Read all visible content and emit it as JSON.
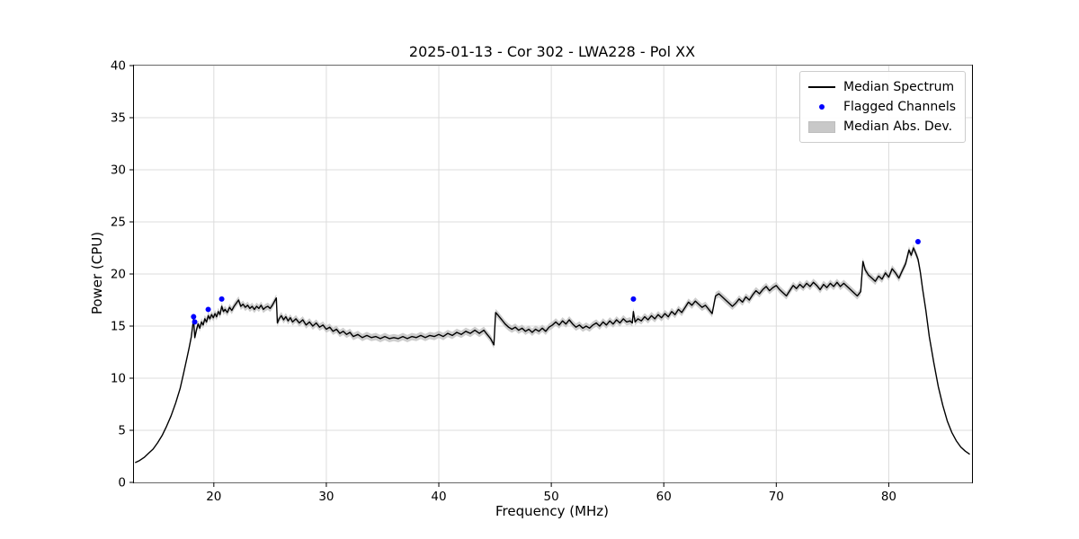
{
  "chart_data": {
    "type": "line",
    "title": "2025-01-13 - Cor 302 - LWA228 - Pol XX",
    "xlabel": "Frequency (MHz)",
    "ylabel": "Power (CPU)",
    "xlim": [
      12.9,
      87.4
    ],
    "ylim": [
      0,
      40
    ],
    "xticks": [
      20,
      30,
      40,
      50,
      60,
      70,
      80
    ],
    "yticks": [
      0,
      5,
      10,
      15,
      20,
      25,
      30,
      35,
      40
    ],
    "grid": true,
    "legend_position": "upper right",
    "legend": {
      "line_label": "Median Spectrum",
      "flagged_label": "Flagged Channels",
      "band_label": "Median Abs. Dev."
    },
    "colors": {
      "line": "#000000",
      "flagged": "#0000ff",
      "band": "#c4c4c4",
      "grid": "#dcdcdc"
    },
    "mad": {
      "halfwidth": 0.35,
      "range": [
        18.0,
        83.0
      ]
    },
    "flagged": [
      [
        18.2,
        15.9
      ],
      [
        18.3,
        15.4
      ],
      [
        19.5,
        16.6
      ],
      [
        20.7,
        17.6
      ],
      [
        57.3,
        17.6
      ],
      [
        82.6,
        23.1
      ]
    ],
    "series_name": "Median Spectrum",
    "series": [
      [
        13.0,
        1.9
      ],
      [
        13.4,
        2.1
      ],
      [
        13.8,
        2.4
      ],
      [
        14.2,
        2.8
      ],
      [
        14.6,
        3.2
      ],
      [
        15.0,
        3.8
      ],
      [
        15.4,
        4.5
      ],
      [
        15.8,
        5.4
      ],
      [
        16.2,
        6.4
      ],
      [
        16.6,
        7.6
      ],
      [
        17.0,
        9.0
      ],
      [
        17.3,
        10.4
      ],
      [
        17.6,
        11.9
      ],
      [
        17.8,
        12.9
      ],
      [
        18.0,
        14.0
      ],
      [
        18.1,
        14.9
      ],
      [
        18.2,
        15.7
      ],
      [
        18.3,
        13.9
      ],
      [
        18.45,
        14.6
      ],
      [
        18.6,
        15.2
      ],
      [
        18.75,
        14.8
      ],
      [
        18.9,
        15.4
      ],
      [
        19.05,
        15.1
      ],
      [
        19.2,
        15.7
      ],
      [
        19.35,
        15.4
      ],
      [
        19.5,
        16.0
      ],
      [
        19.65,
        15.7
      ],
      [
        19.8,
        16.1
      ],
      [
        19.95,
        15.8
      ],
      [
        20.1,
        16.2
      ],
      [
        20.25,
        15.9
      ],
      [
        20.4,
        16.4
      ],
      [
        20.55,
        16.1
      ],
      [
        20.7,
        16.9
      ],
      [
        20.85,
        16.4
      ],
      [
        21.0,
        16.6
      ],
      [
        21.2,
        16.3
      ],
      [
        21.4,
        16.8
      ],
      [
        21.6,
        16.5
      ],
      [
        21.8,
        16.9
      ],
      [
        22.0,
        17.2
      ],
      [
        22.2,
        17.5
      ],
      [
        22.4,
        16.9
      ],
      [
        22.6,
        17.1
      ],
      [
        22.8,
        16.8
      ],
      [
        23.0,
        17.0
      ],
      [
        23.2,
        16.7
      ],
      [
        23.4,
        16.9
      ],
      [
        23.6,
        16.6
      ],
      [
        23.8,
        16.9
      ],
      [
        24.0,
        16.7
      ],
      [
        24.2,
        17.0
      ],
      [
        24.4,
        16.6
      ],
      [
        24.6,
        16.8
      ],
      [
        24.8,
        16.9
      ],
      [
        25.0,
        16.7
      ],
      [
        25.2,
        17.0
      ],
      [
        25.4,
        17.4
      ],
      [
        25.55,
        17.7
      ],
      [
        25.65,
        15.3
      ],
      [
        25.8,
        15.7
      ],
      [
        26.0,
        16.0
      ],
      [
        26.2,
        15.6
      ],
      [
        26.4,
        15.9
      ],
      [
        26.6,
        15.5
      ],
      [
        26.8,
        15.8
      ],
      [
        27.0,
        15.4
      ],
      [
        27.3,
        15.7
      ],
      [
        27.6,
        15.3
      ],
      [
        27.9,
        15.6
      ],
      [
        28.2,
        15.1
      ],
      [
        28.5,
        15.4
      ],
      [
        28.8,
        15.0
      ],
      [
        29.1,
        15.3
      ],
      [
        29.4,
        14.9
      ],
      [
        29.7,
        15.1
      ],
      [
        30.0,
        14.7
      ],
      [
        30.3,
        14.9
      ],
      [
        30.6,
        14.5
      ],
      [
        30.9,
        14.7
      ],
      [
        31.2,
        14.3
      ],
      [
        31.5,
        14.5
      ],
      [
        31.8,
        14.2
      ],
      [
        32.1,
        14.4
      ],
      [
        32.4,
        14.0
      ],
      [
        32.8,
        14.2
      ],
      [
        33.2,
        13.9
      ],
      [
        33.6,
        14.1
      ],
      [
        34.0,
        13.9
      ],
      [
        34.4,
        14.0
      ],
      [
        34.8,
        13.8
      ],
      [
        35.2,
        14.0
      ],
      [
        35.6,
        13.8
      ],
      [
        36.0,
        13.9
      ],
      [
        36.4,
        13.8
      ],
      [
        36.8,
        14.0
      ],
      [
        37.2,
        13.8
      ],
      [
        37.6,
        14.0
      ],
      [
        38.0,
        13.9
      ],
      [
        38.4,
        14.1
      ],
      [
        38.8,
        13.9
      ],
      [
        39.2,
        14.1
      ],
      [
        39.6,
        14.0
      ],
      [
        40.0,
        14.2
      ],
      [
        40.4,
        14.0
      ],
      [
        40.8,
        14.3
      ],
      [
        41.2,
        14.1
      ],
      [
        41.6,
        14.4
      ],
      [
        42.0,
        14.2
      ],
      [
        42.4,
        14.5
      ],
      [
        42.8,
        14.3
      ],
      [
        43.2,
        14.6
      ],
      [
        43.6,
        14.3
      ],
      [
        44.0,
        14.6
      ],
      [
        44.3,
        14.2
      ],
      [
        44.6,
        13.8
      ],
      [
        44.9,
        13.2
      ],
      [
        45.05,
        16.3
      ],
      [
        45.3,
        16.0
      ],
      [
        45.6,
        15.6
      ],
      [
        45.9,
        15.2
      ],
      [
        46.2,
        14.9
      ],
      [
        46.5,
        14.7
      ],
      [
        46.8,
        14.9
      ],
      [
        47.1,
        14.6
      ],
      [
        47.4,
        14.8
      ],
      [
        47.7,
        14.5
      ],
      [
        48.0,
        14.7
      ],
      [
        48.3,
        14.4
      ],
      [
        48.6,
        14.7
      ],
      [
        48.9,
        14.5
      ],
      [
        49.2,
        14.8
      ],
      [
        49.5,
        14.5
      ],
      [
        49.8,
        14.9
      ],
      [
        50.1,
        15.1
      ],
      [
        50.4,
        15.4
      ],
      [
        50.7,
        15.1
      ],
      [
        51.0,
        15.5
      ],
      [
        51.3,
        15.2
      ],
      [
        51.6,
        15.6
      ],
      [
        51.9,
        15.2
      ],
      [
        52.2,
        14.9
      ],
      [
        52.5,
        15.1
      ],
      [
        52.8,
        14.8
      ],
      [
        53.1,
        15.0
      ],
      [
        53.4,
        14.8
      ],
      [
        53.7,
        15.1
      ],
      [
        54.0,
        15.3
      ],
      [
        54.3,
        15.0
      ],
      [
        54.6,
        15.4
      ],
      [
        54.9,
        15.1
      ],
      [
        55.2,
        15.5
      ],
      [
        55.5,
        15.2
      ],
      [
        55.8,
        15.6
      ],
      [
        56.1,
        15.3
      ],
      [
        56.4,
        15.7
      ],
      [
        56.7,
        15.4
      ],
      [
        57.0,
        15.5
      ],
      [
        57.2,
        15.3
      ],
      [
        57.3,
        16.4
      ],
      [
        57.45,
        15.4
      ],
      [
        57.7,
        15.7
      ],
      [
        58.0,
        15.5
      ],
      [
        58.3,
        15.9
      ],
      [
        58.6,
        15.6
      ],
      [
        58.9,
        16.0
      ],
      [
        59.2,
        15.7
      ],
      [
        59.5,
        16.1
      ],
      [
        59.8,
        15.8
      ],
      [
        60.1,
        16.2
      ],
      [
        60.4,
        15.9
      ],
      [
        60.7,
        16.4
      ],
      [
        61.0,
        16.1
      ],
      [
        61.3,
        16.6
      ],
      [
        61.6,
        16.3
      ],
      [
        61.9,
        16.8
      ],
      [
        62.2,
        17.3
      ],
      [
        62.5,
        17.0
      ],
      [
        62.8,
        17.4
      ],
      [
        63.1,
        17.1
      ],
      [
        63.4,
        16.8
      ],
      [
        63.7,
        17.0
      ],
      [
        64.0,
        16.6
      ],
      [
        64.3,
        16.2
      ],
      [
        64.6,
        17.9
      ],
      [
        64.9,
        18.1
      ],
      [
        65.2,
        17.8
      ],
      [
        65.5,
        17.5
      ],
      [
        65.8,
        17.2
      ],
      [
        66.1,
        16.9
      ],
      [
        66.4,
        17.2
      ],
      [
        66.7,
        17.6
      ],
      [
        67.0,
        17.3
      ],
      [
        67.3,
        17.8
      ],
      [
        67.6,
        17.5
      ],
      [
        67.9,
        18.0
      ],
      [
        68.2,
        18.4
      ],
      [
        68.5,
        18.1
      ],
      [
        68.8,
        18.5
      ],
      [
        69.1,
        18.8
      ],
      [
        69.4,
        18.4
      ],
      [
        69.7,
        18.7
      ],
      [
        70.0,
        18.9
      ],
      [
        70.3,
        18.5
      ],
      [
        70.6,
        18.2
      ],
      [
        70.9,
        17.9
      ],
      [
        71.2,
        18.4
      ],
      [
        71.5,
        18.9
      ],
      [
        71.8,
        18.6
      ],
      [
        72.1,
        19.0
      ],
      [
        72.4,
        18.7
      ],
      [
        72.7,
        19.1
      ],
      [
        73.0,
        18.8
      ],
      [
        73.3,
        19.2
      ],
      [
        73.6,
        18.9
      ],
      [
        73.9,
        18.5
      ],
      [
        74.2,
        19.0
      ],
      [
        74.5,
        18.7
      ],
      [
        74.8,
        19.1
      ],
      [
        75.1,
        18.8
      ],
      [
        75.4,
        19.2
      ],
      [
        75.7,
        18.8
      ],
      [
        76.0,
        19.1
      ],
      [
        76.3,
        18.8
      ],
      [
        76.6,
        18.5
      ],
      [
        76.9,
        18.2
      ],
      [
        77.2,
        17.9
      ],
      [
        77.5,
        18.3
      ],
      [
        77.7,
        21.2
      ],
      [
        77.9,
        20.4
      ],
      [
        78.2,
        19.9
      ],
      [
        78.5,
        19.6
      ],
      [
        78.8,
        19.3
      ],
      [
        79.1,
        19.8
      ],
      [
        79.4,
        19.5
      ],
      [
        79.7,
        20.1
      ],
      [
        80.0,
        19.7
      ],
      [
        80.3,
        20.5
      ],
      [
        80.6,
        20.1
      ],
      [
        80.9,
        19.6
      ],
      [
        81.2,
        20.3
      ],
      [
        81.5,
        21.0
      ],
      [
        81.8,
        22.3
      ],
      [
        82.0,
        21.8
      ],
      [
        82.2,
        22.5
      ],
      [
        82.4,
        22.0
      ],
      [
        82.6,
        21.4
      ],
      [
        82.8,
        20.2
      ],
      [
        83.0,
        18.6
      ],
      [
        83.3,
        16.5
      ],
      [
        83.6,
        14.0
      ],
      [
        84.0,
        11.5
      ],
      [
        84.4,
        9.2
      ],
      [
        84.8,
        7.4
      ],
      [
        85.2,
        5.9
      ],
      [
        85.6,
        4.8
      ],
      [
        86.0,
        4.0
      ],
      [
        86.4,
        3.4
      ],
      [
        86.8,
        3.0
      ],
      [
        87.2,
        2.7
      ]
    ]
  }
}
